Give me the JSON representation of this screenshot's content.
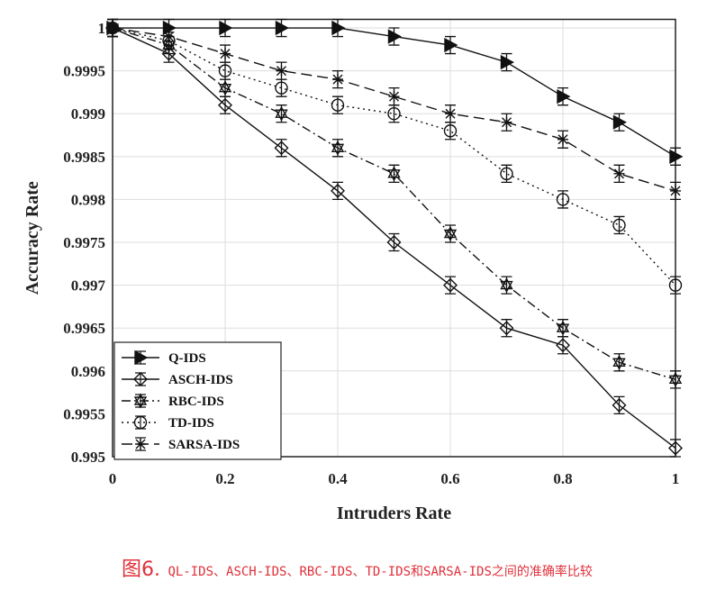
{
  "chart_data": {
    "type": "line",
    "xlabel": "Intruders Rate",
    "ylabel": "Accuracy Rate",
    "xlim": [
      0,
      1
    ],
    "ylim": [
      0.995,
      1.0001
    ],
    "grid": true,
    "legend_position": "bottom-left",
    "x": [
      0,
      0.1,
      0.2,
      0.3,
      0.4,
      0.5,
      0.6,
      0.7,
      0.8,
      0.9,
      1
    ],
    "x_ticks": [
      "0",
      "0.2",
      "0.4",
      "0.6",
      "0.8",
      "1"
    ],
    "y_ticks": [
      "0.995",
      "0.9955",
      "0.996",
      "0.9965",
      "0.997",
      "0.9975",
      "0.998",
      "0.9985",
      "0.999",
      "0.9995",
      "1"
    ],
    "error_bar": 0.0001,
    "series": [
      {
        "name": "Q-IDS",
        "marker": "triangle-right",
        "line": "solid",
        "values": [
          1,
          1,
          1,
          1,
          1,
          0.9999,
          0.9998,
          0.9996,
          0.9992,
          0.9989,
          0.9985
        ]
      },
      {
        "name": "ASCH-IDS",
        "marker": "diamond",
        "line": "solid",
        "values": [
          1,
          0.9997,
          0.9991,
          0.9986,
          0.9981,
          0.9975,
          0.997,
          0.9965,
          0.9963,
          0.9956,
          0.9951
        ]
      },
      {
        "name": "RBC-IDS",
        "marker": "hexagram",
        "line": "dashdot",
        "values": [
          1,
          0.9998,
          0.9993,
          0.999,
          0.9986,
          0.9983,
          0.9976,
          0.997,
          0.9965,
          0.9961,
          0.9959
        ]
      },
      {
        "name": "TD-IDS",
        "marker": "circle",
        "line": "dotted",
        "values": [
          1,
          0.99985,
          0.9995,
          0.9993,
          0.9991,
          0.999,
          0.9988,
          0.9983,
          0.998,
          0.9977,
          0.997
        ]
      },
      {
        "name": "SARSA-IDS",
        "marker": "asterisk",
        "line": "dashed",
        "values": [
          1,
          0.9999,
          0.9997,
          0.9995,
          0.9994,
          0.9992,
          0.999,
          0.9989,
          0.9987,
          0.9983,
          0.9981
        ]
      }
    ]
  },
  "caption": {
    "figure": "图6.",
    "text": "QL-IDS、ASCH-IDS、RBC-IDS、TD-IDS和SARSA-IDS之间的准确率比较",
    "color": "#e0303a"
  }
}
